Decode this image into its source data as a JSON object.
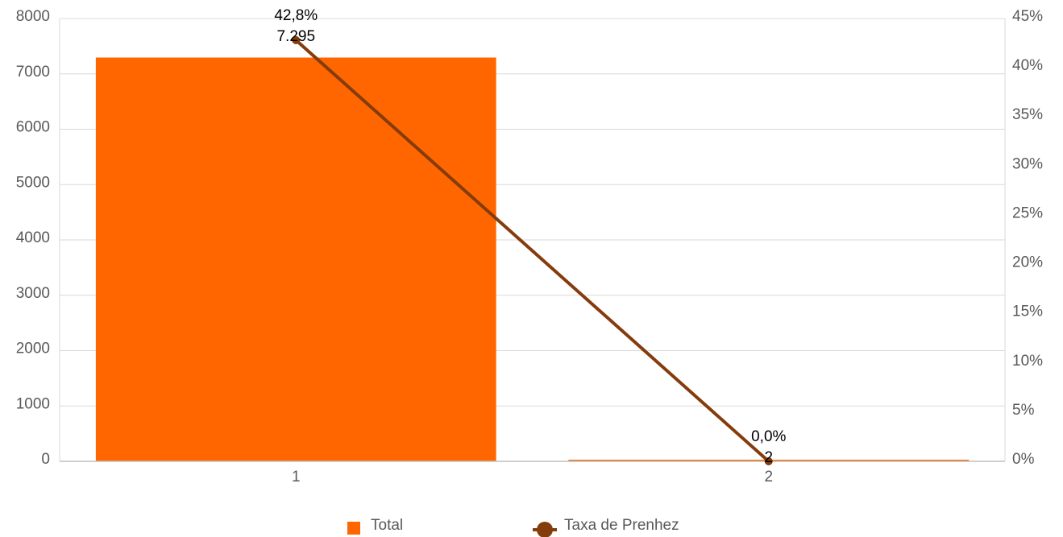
{
  "chart_data": {
    "type": "bar",
    "categories": [
      "1",
      "2"
    ],
    "series": [
      {
        "name": "Total",
        "type": "bar",
        "axis": "left",
        "values": [
          7295,
          2
        ],
        "labels": [
          "7.295",
          "2"
        ],
        "color": "#ff6600"
      },
      {
        "name": "Taxa de Prenhez",
        "type": "line",
        "axis": "right",
        "values": [
          42.8,
          0.0
        ],
        "labels": [
          "42,8%",
          "0,0%"
        ],
        "color": "#843c0c"
      }
    ],
    "left_axis": {
      "ylim": [
        0,
        8000
      ],
      "ticks": [
        "0",
        "1000",
        "2000",
        "3000",
        "4000",
        "5000",
        "6000",
        "7000",
        "8000"
      ]
    },
    "right_axis": {
      "ylim": [
        0,
        45
      ],
      "ticks": [
        "0%",
        "5%",
        "10%",
        "15%",
        "20%",
        "25%",
        "30%",
        "35%",
        "40%",
        "45%"
      ]
    },
    "grid": true,
    "legend": "bottom"
  }
}
